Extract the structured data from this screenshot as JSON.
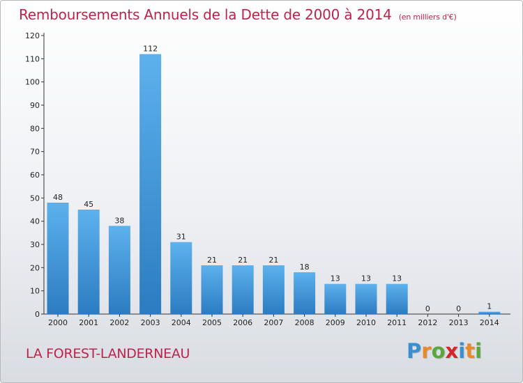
{
  "title": "Remboursements Annuels de la Dette de 2000 à 2014",
  "subtitle": "(en milliers d'€)",
  "commune": "LA FOREST-LANDERNEAU",
  "logo": {
    "text": "Proxiti",
    "letter_colors": [
      "#3a8fd0",
      "#e8892a",
      "#5aa83c",
      "#d4262c",
      "#3a8fd0",
      "#e8892a",
      "#5aa83c"
    ]
  },
  "colors": {
    "title": "#c0224a",
    "bar_top": "#5db1ec",
    "bar_bottom": "#2b7cc2",
    "axis": "#333333"
  },
  "chart_data": {
    "type": "bar",
    "categories": [
      "2000",
      "2001",
      "2002",
      "2003",
      "2004",
      "2005",
      "2006",
      "2007",
      "2008",
      "2009",
      "2010",
      "2011",
      "2012",
      "2013",
      "2014"
    ],
    "values": [
      48,
      45,
      38,
      112,
      31,
      21,
      21,
      21,
      18,
      13,
      13,
      13,
      0,
      0,
      1
    ],
    "value_labels": [
      "48",
      "45",
      "38",
      "112",
      "31",
      "21",
      "21",
      "21",
      "18",
      "13",
      "13",
      "13",
      "0",
      "0",
      "1"
    ],
    "ylim": [
      0,
      120
    ],
    "yticks": [
      "0",
      "10",
      "20",
      "30",
      "40",
      "50",
      "60",
      "70",
      "80",
      "90",
      "100",
      "110",
      "120"
    ],
    "grid": false,
    "xlabel": "",
    "ylabel": ""
  }
}
